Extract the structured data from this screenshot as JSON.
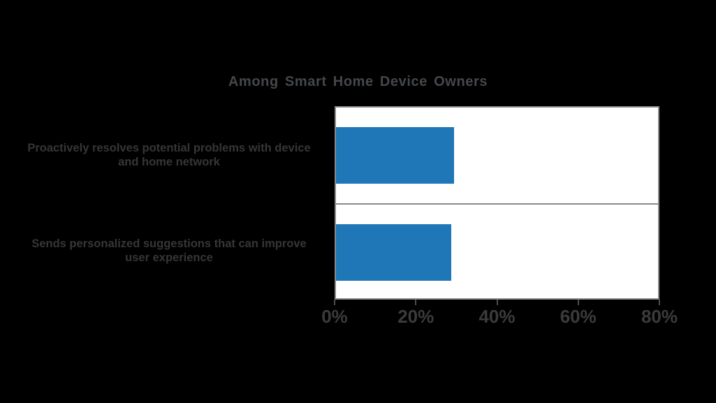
{
  "chart_data": {
    "type": "bar",
    "orientation": "horizontal",
    "title": "Among Smart Home Device Owners",
    "categories": [
      "Proactively resolves potential problems with device and home network",
      "Sends personalized suggestions that can improve user experience"
    ],
    "categories_lines": [
      [
        "Proactively resolves potential problems with device",
        "and home network"
      ],
      [
        "Sends personalized suggestions that can improve",
        "user experience"
      ]
    ],
    "values": [
      29.4,
      28.7
    ],
    "value_unit": "%",
    "xlabel": "",
    "ylabel": "",
    "xlim": [
      0,
      80
    ],
    "xticks": [
      "0%",
      "20%",
      "40%",
      "60%",
      "80%"
    ],
    "xtick_values": [
      0,
      20,
      40,
      60,
      80
    ],
    "grid": false,
    "legend": null,
    "colors": {
      "bar": "#1f77b8",
      "plot_background": "#ffffff",
      "page_background": "#000000",
      "spine_and_divider": "#8a8a8a",
      "title_text": "#44474c",
      "category_text": "#363636",
      "tick_text": "#3b3b3b",
      "tick_mark": "#4d4d4d"
    }
  }
}
